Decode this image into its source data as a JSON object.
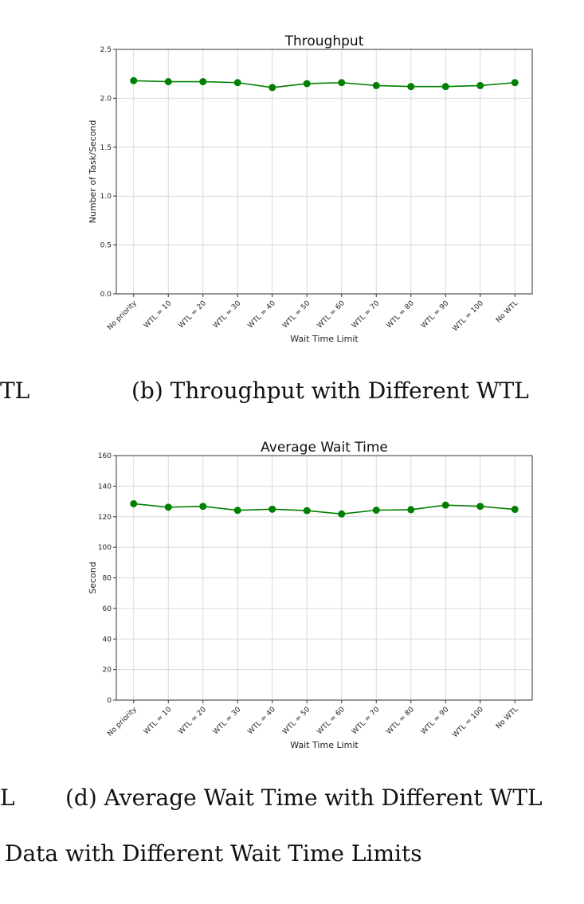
{
  "captions": {
    "left_cut_b": "TL",
    "sub_b": "(b) Throughput with Different WTL",
    "left_cut_d": "L",
    "sub_d": "(d) Average Wait Time with Different WTL",
    "figure": "Data with Different Wait Time Limits"
  },
  "chart_data": [
    {
      "type": "line",
      "title": "Throughput",
      "xlabel": "Wait Time Limit",
      "ylabel": "Number of Task/Second",
      "categories": [
        "No priority",
        "WTL = 10",
        "WTL = 20",
        "WTL = 30",
        "WTL = 40",
        "WTL = 50",
        "WTL = 60",
        "WTL = 70",
        "WTL = 80",
        "WTL = 90",
        "WTL = 100",
        "No WTL"
      ],
      "values": [
        2.18,
        2.17,
        2.17,
        2.16,
        2.11,
        2.15,
        2.16,
        2.13,
        2.12,
        2.12,
        2.13,
        2.16
      ],
      "ylim": [
        0,
        2.5
      ],
      "yticks": [
        0.0,
        0.5,
        1.0,
        1.5,
        2.0,
        2.5
      ],
      "ytick_labels": [
        "0.0",
        "0.5",
        "1.0",
        "1.5",
        "2.0",
        "2.5"
      ],
      "grid": true,
      "color": "#008000"
    },
    {
      "type": "line",
      "title": "Average Wait Time",
      "xlabel": "Wait Time Limit",
      "ylabel": "Second",
      "categories": [
        "No priority",
        "WTL = 10",
        "WTL = 20",
        "WTL = 30",
        "WTL = 40",
        "WTL = 50",
        "WTL = 60",
        "WTL = 70",
        "WTL = 80",
        "WTL = 90",
        "WTL = 100",
        "No WTL"
      ],
      "values": [
        128.5,
        126.2,
        126.8,
        124.2,
        124.9,
        124.0,
        121.8,
        124.3,
        124.6,
        127.6,
        126.8,
        124.8
      ],
      "ylim": [
        0,
        160
      ],
      "yticks": [
        0,
        20,
        40,
        60,
        80,
        100,
        120,
        140,
        160
      ],
      "ytick_labels": [
        "0",
        "20",
        "40",
        "60",
        "80",
        "100",
        "120",
        "140",
        "160"
      ],
      "grid": true,
      "color": "#008000"
    }
  ]
}
